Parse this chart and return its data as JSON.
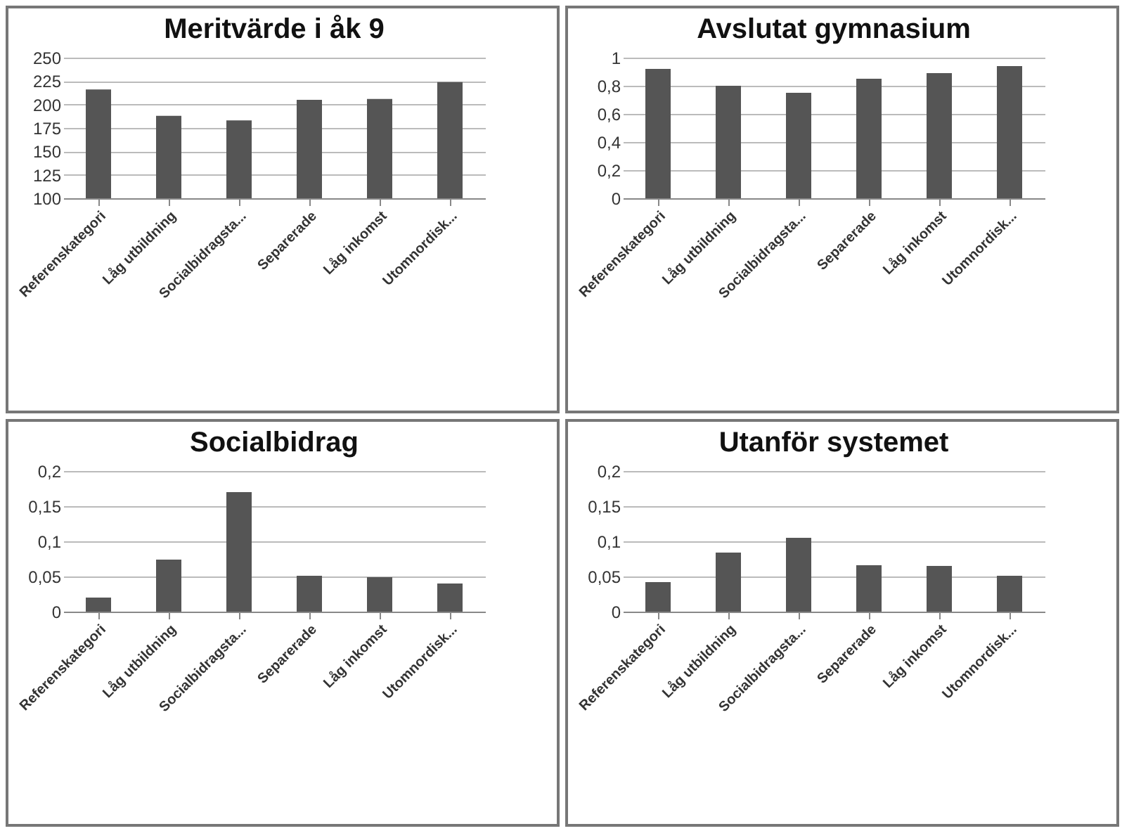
{
  "chart_data": [
    {
      "type": "bar",
      "title": "Meritvärde i åk 9",
      "categories": [
        "Referenskategori",
        "Låg utbildning",
        "Socialbidragsta...",
        "Separerade",
        "Låg inkomst",
        "Utomnordisk..."
      ],
      "values": [
        216,
        188,
        183,
        205,
        206,
        224
      ],
      "color": "#555555",
      "ylim": [
        100,
        250
      ],
      "yticks": [
        100,
        125,
        150,
        175,
        200,
        225,
        250
      ],
      "grid": "y"
    },
    {
      "type": "bar",
      "title": "Avslutat gymnasium",
      "categories": [
        "Referenskategori",
        "Låg utbildning",
        "Socialbidragsta...",
        "Separerade",
        "Låg inkomst",
        "Utomnordisk..."
      ],
      "values": [
        0.92,
        0.8,
        0.75,
        0.85,
        0.89,
        0.94
      ],
      "color": "#555555",
      "ylim": [
        0,
        1
      ],
      "yticks": [
        0,
        {
          "value": 0.2,
          "label": "0,2"
        },
        {
          "value": 0.4,
          "label": "0,4"
        },
        {
          "value": 0.6,
          "label": "0,6"
        },
        {
          "value": 0.8,
          "label": "0,8"
        },
        1
      ],
      "grid": "y"
    },
    {
      "type": "bar",
      "title": "Socialbidrag",
      "categories": [
        "Referenskategori",
        "Låg utbildning",
        "Socialbidragsta...",
        "Separerade",
        "Låg inkomst",
        "Utomnordisk..."
      ],
      "values": [
        0.02,
        0.074,
        0.17,
        0.051,
        0.049,
        0.04
      ],
      "color": "#555555",
      "ylim": [
        0,
        0.2
      ],
      "yticks": [
        0,
        {
          "value": 0.05,
          "label": "0,05"
        },
        {
          "value": 0.1,
          "label": "0,1"
        },
        {
          "value": 0.15,
          "label": "0,15"
        },
        {
          "value": 0.2,
          "label": "0,2"
        }
      ],
      "grid": "y"
    },
    {
      "type": "bar",
      "title": "Utanför systemet",
      "categories": [
        "Referenskategori",
        "Låg utbildning",
        "Socialbidragsta...",
        "Separerade",
        "Låg inkomst",
        "Utomnordisk..."
      ],
      "values": [
        0.042,
        0.084,
        0.105,
        0.066,
        0.065,
        0.051
      ],
      "color": "#555555",
      "ylim": [
        0,
        0.2
      ],
      "yticks": [
        0,
        {
          "value": 0.05,
          "label": "0,05"
        },
        {
          "value": 0.1,
          "label": "0,1"
        },
        {
          "value": 0.15,
          "label": "0,15"
        },
        {
          "value": 0.2,
          "label": "0,2"
        }
      ],
      "grid": "y"
    }
  ]
}
